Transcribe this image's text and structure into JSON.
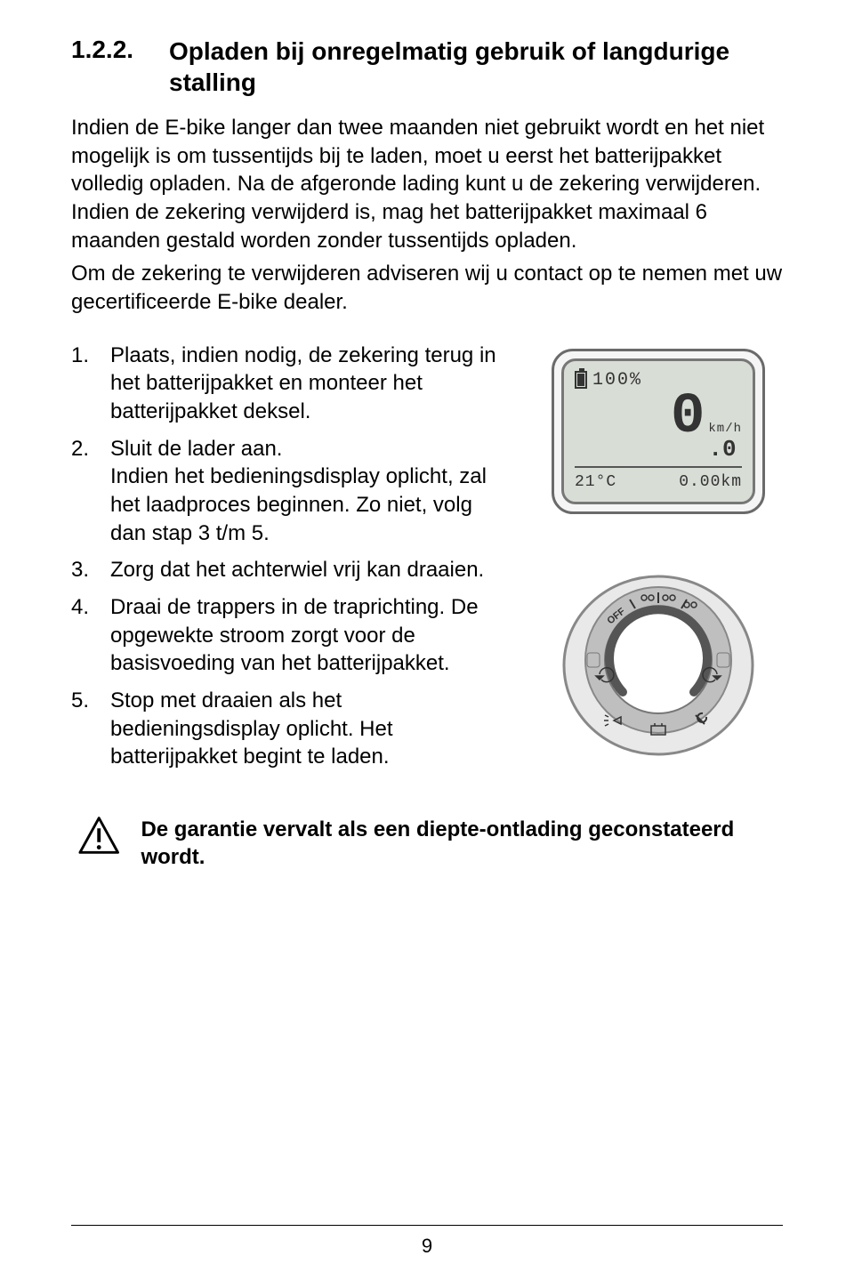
{
  "section": {
    "number": "1.2.2.",
    "title": "Opladen bij onregelmatig gebruik of langdurige stalling"
  },
  "paragraphs": {
    "p1": "Indien de E-bike langer dan twee maanden niet gebruikt wordt en het niet mogelijk is om tussentijds bij te laden, moet u eerst het batterijpakket volledig opladen. Na de afgeronde lading kunt u de zekering verwijderen. Indien de zekering verwijderd is, mag het batterijpakket maximaal 6 maanden gestald worden zonder tussentijds opladen.",
    "p2": "Om de zekering te verwijderen adviseren wij u contact op te nemen met uw gecertificeerde E-bike dealer."
  },
  "steps": [
    {
      "num": "1.",
      "text": "Plaats, indien nodig, de zekering terug in het batterijpakket en monteer het batterijpakket deksel."
    },
    {
      "num": "2.",
      "text": "Sluit de lader aan.\nIndien het bedieningsdisplay oplicht, zal het laadproces beginnen. Zo niet, volg dan stap 3 t/m 5."
    },
    {
      "num": "3.",
      "text": "Zorg dat het achterwiel vrij kan draaien."
    },
    {
      "num": "4.",
      "text": "Draai de trappers in de traprichting. De opgewekte stroom zorgt voor de basisvoeding van het batterijpakket."
    },
    {
      "num": "5.",
      "text": "Stop met draaien als het bedieningsdisplay oplicht. Het batterijpakket begint te laden."
    }
  ],
  "warning": {
    "text": "De garantie vervalt als een diepte-ontlading geconstateerd wordt."
  },
  "pageNumber": "9",
  "display": {
    "battery_pct": "100%",
    "speed_big": "0",
    "speed_small": ".0",
    "speed_unit": "km/h",
    "temp": "21°C",
    "distance": "0.00km",
    "lcd_bg": "#d8ddd6",
    "lcd_border": "#777777",
    "device_border": "#6a6a6a"
  },
  "dial": {
    "outer_fill": "#e9e9e9",
    "outer_stroke": "#888888",
    "ring_fill": "#bfbfbf",
    "screen_fill": "#ffffff",
    "screen_stroke": "#777777",
    "arc_stroke": "#555555",
    "label_off": "OFF",
    "labels_colors": "#333333"
  }
}
